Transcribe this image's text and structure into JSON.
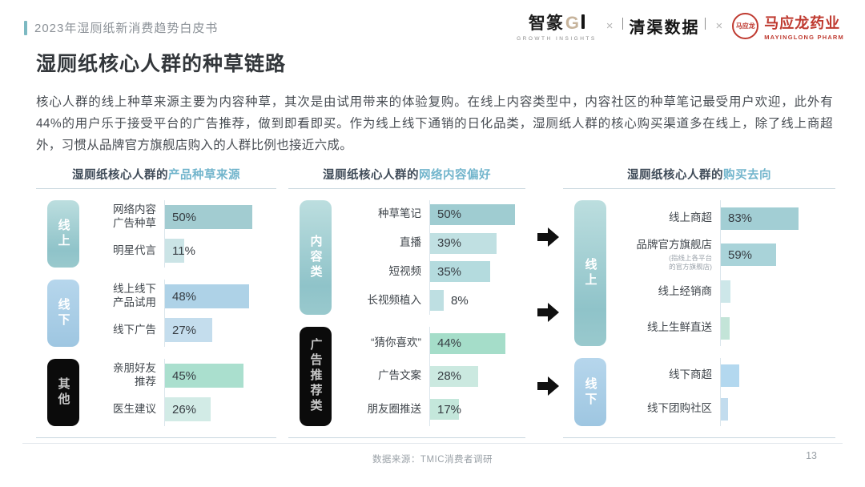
{
  "header": {
    "doc_label": "2023年湿厕纸新消费趋势白皮书"
  },
  "logos": {
    "zhizhuan_cn": "智篆",
    "zhizhuan_g": "G",
    "zhizhuan_sub": "GROWTH INSIGHTS",
    "separator": "×",
    "qingqu": "清渠数据",
    "mayinglong_emblem": "马应龙",
    "mayinglong_cn": "马应龙药业",
    "mayinglong_en": "MAYINGLONG PHARM"
  },
  "page": {
    "title": "湿厕纸核心人群的种草链路",
    "body": "核心人群的线上种草来源主要为内容种草，其次是由试用带来的体验复购。在线上内容类型中，内容社区的种草笔记最受用户欢迎，此外有44%的用户乐于接受平台的广告推荐，做到即看即买。作为线上线下通销的日化品类，湿厕纸人群的核心购买渠道多在线上，除了线上商超外，习惯从品牌官方旗舰店购入的人群比例也接近六成。"
  },
  "footer": {
    "source": "数据来源：TMIC消费者调研",
    "page_number": "13"
  },
  "chart_data": [
    {
      "type": "bar",
      "orientation": "horizontal",
      "title_prefix": "湿厕纸核心人群的",
      "title_highlight": "产品种草来源",
      "value_unit": "%",
      "scale_max": 62,
      "groups": [
        {
          "label": "线上",
          "style": "teal",
          "items": [
            {
              "label": "网络内容\n广告种草",
              "value": 50,
              "display": "50%",
              "color": "#a2ccd1"
            },
            {
              "label": "明星代言",
              "value": 11,
              "display": "11%",
              "color": "#cbe4e6"
            }
          ]
        },
        {
          "label": "线下",
          "style": "blue",
          "items": [
            {
              "label": "线上线下\n产品试用",
              "value": 48,
              "display": "48%",
              "color": "#aed2e7"
            },
            {
              "label": "线下广告",
              "value": 27,
              "display": "27%",
              "color": "#c4dded"
            }
          ]
        },
        {
          "label": "其他",
          "style": "black",
          "items": [
            {
              "label": "亲朋好友\n推荐",
              "value": 45,
              "display": "45%",
              "color": "#aadfce"
            },
            {
              "label": "医生建议",
              "value": 26,
              "display": "26%",
              "color": "#d2ebe6"
            }
          ]
        }
      ]
    },
    {
      "type": "bar",
      "orientation": "horizontal",
      "title_prefix": "湿厕纸核心人群的",
      "title_highlight": "网络内容偏好",
      "value_unit": "%",
      "scale_max": 54,
      "groups": [
        {
          "label": "内容类",
          "style": "teal",
          "items": [
            {
              "label": "种草笔记",
              "value": 50,
              "display": "50%",
              "color": "#9fccd1"
            },
            {
              "label": "直播",
              "value": 39,
              "display": "39%",
              "color": "#c0e0e2"
            },
            {
              "label": "短视频",
              "value": 35,
              "display": "35%",
              "color": "#b4dbde"
            },
            {
              "label": "长视频植入",
              "value": 8,
              "display": "8%",
              "color": "#bedfe2",
              "outside": true
            }
          ]
        },
        {
          "label": "广告推荐类",
          "style": "black",
          "items": [
            {
              "label": "“猜你喜欢”",
              "value": 44,
              "display": "44%",
              "color": "#a5ddc9"
            },
            {
              "label": "广告文案",
              "value": 28,
              "display": "28%",
              "color": "#cbe9e0"
            },
            {
              "label": "朋友圈推送",
              "value": 17,
              "display": "17%",
              "color": "#c4e7db"
            }
          ]
        }
      ]
    },
    {
      "type": "bar",
      "orientation": "horizontal",
      "title_prefix": "湿厕纸核心人群的",
      "title_highlight": "购买去向",
      "value_unit": "%",
      "scale_max": 119,
      "groups": [
        {
          "label": "线上",
          "style": "teal",
          "items": [
            {
              "label": "线上商超",
              "value": 83,
              "display": "83%",
              "color": "#a2ced4"
            },
            {
              "label": "品牌官方旗舰店",
              "value": 59,
              "display": "59%",
              "color": "#a9d3d9",
              "note": "(指线上各平台\n的官方旗舰店)"
            },
            {
              "label": "线上经销商",
              "value": 10,
              "display": "",
              "color": "#cde7e9",
              "estimated": true
            },
            {
              "label": "线上生鲜直送",
              "value": 9,
              "display": "",
              "color": "#c3e4d8",
              "estimated": true
            }
          ]
        },
        {
          "label": "线下",
          "style": "blue",
          "items": [
            {
              "label": "线下商超",
              "value": 20,
              "display": "",
              "color": "#b3d8ef",
              "estimated": true
            },
            {
              "label": "线下团购社区",
              "value": 7,
              "display": "",
              "color": "#c2dcee",
              "estimated": true
            }
          ]
        }
      ]
    }
  ]
}
